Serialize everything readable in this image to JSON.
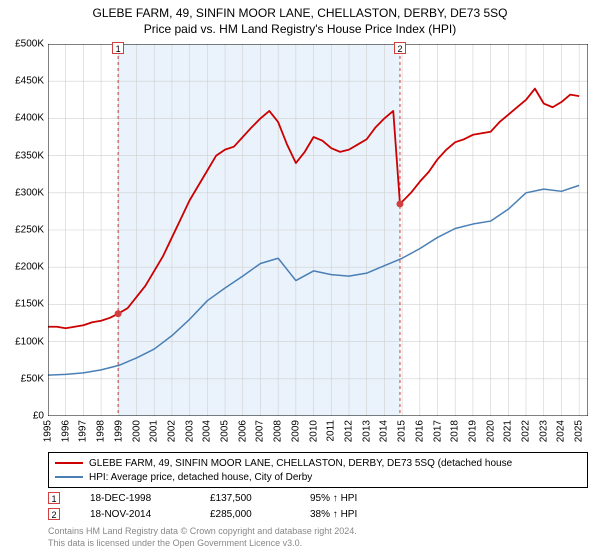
{
  "title_line1": "GLEBE FARM, 49, SINFIN MOOR LANE, CHELLASTON, DERBY, DE73 5SQ",
  "title_line2": "Price paid vs. HM Land Registry's House Price Index (HPI)",
  "chart": {
    "type": "line",
    "background_color": "#ffffff",
    "grid_color": "#d0d0d0",
    "axis_color": "#000000",
    "xlim": [
      1995,
      2025.5
    ],
    "ylim": [
      0,
      500000
    ],
    "ytick_step": 50000,
    "ytick_labels": [
      "£0",
      "£50K",
      "£100K",
      "£150K",
      "£200K",
      "£250K",
      "£300K",
      "£350K",
      "£400K",
      "£450K",
      "£500K"
    ],
    "xtick_step": 1,
    "xtick_labels": [
      "1995",
      "1996",
      "1997",
      "1998",
      "1999",
      "2000",
      "2001",
      "2002",
      "2003",
      "2004",
      "2005",
      "2006",
      "2007",
      "2008",
      "2009",
      "2010",
      "2011",
      "2012",
      "2013",
      "2014",
      "2015",
      "2016",
      "2017",
      "2018",
      "2019",
      "2020",
      "2021",
      "2022",
      "2023",
      "2024",
      "2025"
    ],
    "label_fontsize": 10,
    "shaded_band": {
      "x_from": 1998.96,
      "x_to": 2014.88,
      "fill": "#eaf3fb"
    },
    "vlines": [
      {
        "x": 1998.96,
        "color": "#d04040",
        "dash": "3,3",
        "width": 1
      },
      {
        "x": 2014.88,
        "color": "#d04040",
        "dash": "3,3",
        "width": 1
      }
    ],
    "markers": [
      {
        "n": "1",
        "x": 1998.96,
        "y_top": true,
        "point_x": 1998.96,
        "point_y": 137500,
        "box_color": "#d04040"
      },
      {
        "n": "2",
        "x": 2014.88,
        "y_top": true,
        "point_x": 2014.88,
        "point_y": 285000,
        "box_color": "#d04040"
      }
    ],
    "point_marker": {
      "fill": "#d04040",
      "radius": 3.5
    },
    "series": [
      {
        "name": "property",
        "color": "#cc0000",
        "width": 1.8,
        "data": [
          [
            1995,
            120000
          ],
          [
            1995.5,
            120000
          ],
          [
            1996,
            118000
          ],
          [
            1996.5,
            120000
          ],
          [
            1997,
            122000
          ],
          [
            1997.5,
            126000
          ],
          [
            1998,
            128000
          ],
          [
            1998.5,
            132000
          ],
          [
            1998.96,
            137500
          ],
          [
            1999.5,
            145000
          ],
          [
            2000,
            160000
          ],
          [
            2000.5,
            175000
          ],
          [
            2001,
            195000
          ],
          [
            2001.5,
            215000
          ],
          [
            2002,
            240000
          ],
          [
            2002.5,
            265000
          ],
          [
            2003,
            290000
          ],
          [
            2003.5,
            310000
          ],
          [
            2004,
            330000
          ],
          [
            2004.5,
            350000
          ],
          [
            2005,
            358000
          ],
          [
            2005.5,
            362000
          ],
          [
            2006,
            375000
          ],
          [
            2006.5,
            388000
          ],
          [
            2007,
            400000
          ],
          [
            2007.5,
            410000
          ],
          [
            2008,
            395000
          ],
          [
            2008.5,
            365000
          ],
          [
            2009,
            340000
          ],
          [
            2009.5,
            355000
          ],
          [
            2010,
            375000
          ],
          [
            2010.5,
            370000
          ],
          [
            2011,
            360000
          ],
          [
            2011.5,
            355000
          ],
          [
            2012,
            358000
          ],
          [
            2012.5,
            365000
          ],
          [
            2013,
            372000
          ],
          [
            2013.5,
            388000
          ],
          [
            2014,
            400000
          ],
          [
            2014.5,
            410000
          ],
          [
            2014.88,
            285000
          ],
          [
            2015.5,
            300000
          ],
          [
            2016,
            315000
          ],
          [
            2016.5,
            328000
          ],
          [
            2017,
            345000
          ],
          [
            2017.5,
            358000
          ],
          [
            2018,
            368000
          ],
          [
            2018.5,
            372000
          ],
          [
            2019,
            378000
          ],
          [
            2019.5,
            380000
          ],
          [
            2020,
            382000
          ],
          [
            2020.5,
            395000
          ],
          [
            2021,
            405000
          ],
          [
            2021.5,
            415000
          ],
          [
            2022,
            425000
          ],
          [
            2022.5,
            440000
          ],
          [
            2023,
            420000
          ],
          [
            2023.5,
            415000
          ],
          [
            2024,
            422000
          ],
          [
            2024.5,
            432000
          ],
          [
            2025,
            430000
          ]
        ]
      },
      {
        "name": "hpi",
        "color": "#4a7fb5",
        "width": 1.5,
        "data": [
          [
            1995,
            55000
          ],
          [
            1996,
            56000
          ],
          [
            1997,
            58000
          ],
          [
            1998,
            62000
          ],
          [
            1999,
            68000
          ],
          [
            2000,
            78000
          ],
          [
            2001,
            90000
          ],
          [
            2002,
            108000
          ],
          [
            2003,
            130000
          ],
          [
            2004,
            155000
          ],
          [
            2005,
            172000
          ],
          [
            2006,
            188000
          ],
          [
            2007,
            205000
          ],
          [
            2008,
            212000
          ],
          [
            2009,
            182000
          ],
          [
            2010,
            195000
          ],
          [
            2011,
            190000
          ],
          [
            2012,
            188000
          ],
          [
            2013,
            192000
          ],
          [
            2014,
            202000
          ],
          [
            2015,
            212000
          ],
          [
            2016,
            225000
          ],
          [
            2017,
            240000
          ],
          [
            2018,
            252000
          ],
          [
            2019,
            258000
          ],
          [
            2020,
            262000
          ],
          [
            2021,
            278000
          ],
          [
            2022,
            300000
          ],
          [
            2023,
            305000
          ],
          [
            2024,
            302000
          ],
          [
            2025,
            310000
          ]
        ]
      }
    ]
  },
  "legend": {
    "items": [
      {
        "color": "#cc0000",
        "label": "GLEBE FARM, 49, SINFIN MOOR LANE, CHELLASTON, DERBY, DE73 5SQ (detached house"
      },
      {
        "color": "#4a7fb5",
        "label": "HPI: Average price, detached house, City of Derby"
      }
    ]
  },
  "events": [
    {
      "n": "1",
      "color": "#d04040",
      "date": "18-DEC-1998",
      "price": "£137,500",
      "pct": "95% ↑ HPI"
    },
    {
      "n": "2",
      "color": "#d04040",
      "date": "18-NOV-2014",
      "price": "£285,000",
      "pct": "38% ↑ HPI"
    }
  ],
  "footer_line1": "Contains HM Land Registry data © Crown copyright and database right 2024.",
  "footer_line2": "This data is licensed under the Open Government Licence v3.0."
}
